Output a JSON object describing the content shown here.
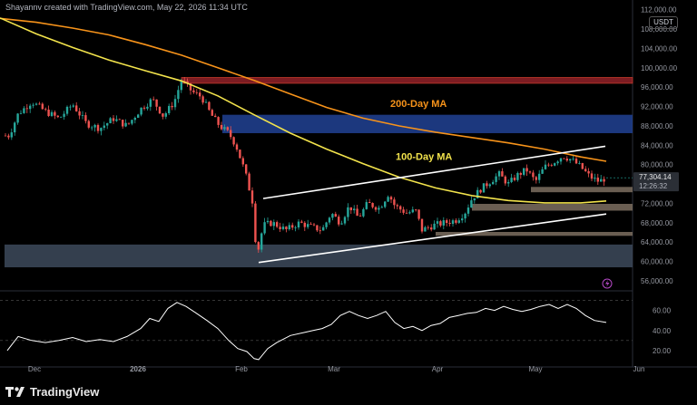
{
  "attribution": "Shayannv created with TradingView.com, May 22, 2026 11:34 UTC",
  "brand": "TradingView",
  "currency": "USDT",
  "colors": {
    "background": "#000000",
    "up": "#26a69a",
    "down": "#ef5350",
    "ma200": "#f7931a",
    "ma100": "#f2e34c",
    "demand_zone": "#3d4a5c",
    "supply_zone_blue": "#1f3e8c",
    "supply_zone_red": "#7a1c22",
    "support_box": "#8b7a6a",
    "rsi_line": "#ffffff",
    "channel": "#ffffff"
  },
  "chart_data": {
    "type": "candlestick",
    "title": "",
    "y_axis_labels": [
      "112,000.00",
      "108,000.00",
      "104,000.00",
      "100,000.00",
      "96,000.00",
      "92,000.00",
      "88,000.00",
      "84,000.00",
      "80,000.00",
      "76,000.00",
      "72,000.00",
      "68,000.00",
      "64,000.00",
      "60,000.00",
      "56,000.00"
    ],
    "ylim": [
      54500,
      114000
    ],
    "x_axis_labels": [
      "Dec",
      "2026",
      "Feb",
      "Mar",
      "Apr",
      "May",
      "Jun"
    ],
    "price_label": "77,304.14",
    "countdown_label": "12:26:32",
    "annotations": [
      {
        "text": "200-Day MA",
        "color": "#f7931a"
      },
      {
        "text": "100-Day MA",
        "color": "#f2e34c"
      }
    ],
    "ma200": [
      [
        0,
        110200
      ],
      [
        40,
        109400
      ],
      [
        80,
        108200
      ],
      [
        120,
        106800
      ],
      [
        160,
        104800
      ],
      [
        200,
        102600
      ],
      [
        240,
        100000
      ],
      [
        280,
        97400
      ],
      [
        320,
        94600
      ],
      [
        360,
        91800
      ],
      [
        400,
        89600
      ],
      [
        440,
        88000
      ],
      [
        480,
        86700
      ],
      [
        520,
        85600
      ],
      [
        560,
        84500
      ],
      [
        600,
        83200
      ],
      [
        640,
        81600
      ],
      [
        668,
        80700
      ]
    ],
    "ma100": [
      [
        0,
        110300
      ],
      [
        40,
        107000
      ],
      [
        80,
        104200
      ],
      [
        120,
        101600
      ],
      [
        160,
        99400
      ],
      [
        200,
        97300
      ],
      [
        240,
        94200
      ],
      [
        280,
        90300
      ],
      [
        320,
        86500
      ],
      [
        360,
        83200
      ],
      [
        400,
        80200
      ],
      [
        440,
        77400
      ],
      [
        480,
        75200
      ],
      [
        520,
        73600
      ],
      [
        560,
        72600
      ],
      [
        600,
        72100
      ],
      [
        640,
        72100
      ],
      [
        668,
        72500
      ]
    ],
    "channel_upper": [
      [
        290,
        73000
      ],
      [
        667,
        83800
      ]
    ],
    "channel_lower": [
      [
        285,
        59800
      ],
      [
        668,
        69800
      ]
    ],
    "zones": [
      {
        "name": "demand",
        "y1": 58800,
        "y2": 63500,
        "x1": 5,
        "x2": 697
      },
      {
        "name": "supply-blue",
        "y1": 86500,
        "y2": 90300,
        "x1": 245,
        "x2": 697
      },
      {
        "name": "supply-red",
        "y1": 96800,
        "y2": 98000,
        "x1": 200,
        "x2": 697
      },
      {
        "name": "support-1",
        "y1": 74300,
        "y2": 75400,
        "x1": 585,
        "x2": 697
      },
      {
        "name": "support-2",
        "y1": 70500,
        "y2": 71900,
        "x1": 520,
        "x2": 697
      },
      {
        "name": "support-3",
        "y1": 65300,
        "y2": 66100,
        "x1": 480,
        "x2": 697
      }
    ],
    "price_path": [
      [
        10,
        86000
      ],
      [
        20,
        90500
      ],
      [
        35,
        93000
      ],
      [
        50,
        91000
      ],
      [
        65,
        89500
      ],
      [
        80,
        92500
      ],
      [
        95,
        88500
      ],
      [
        110,
        87500
      ],
      [
        125,
        89500
      ],
      [
        140,
        88000
      ],
      [
        155,
        91500
      ],
      [
        168,
        93500
      ],
      [
        180,
        90000
      ],
      [
        192,
        93000
      ],
      [
        200,
        97500
      ],
      [
        212,
        95000
      ],
      [
        222,
        94000
      ],
      [
        232,
        90500
      ],
      [
        242,
        88000
      ],
      [
        252,
        86500
      ],
      [
        260,
        84000
      ],
      [
        270,
        78500
      ],
      [
        278,
        72500
      ],
      [
        283,
        61000
      ],
      [
        290,
        67500
      ],
      [
        300,
        68000
      ],
      [
        315,
        66500
      ],
      [
        330,
        68000
      ],
      [
        345,
        67000
      ],
      [
        355,
        66500
      ],
      [
        365,
        70000
      ],
      [
        375,
        68000
      ],
      [
        385,
        71500
      ],
      [
        395,
        69000
      ],
      [
        405,
        72000
      ],
      [
        418,
        71000
      ],
      [
        428,
        74000
      ],
      [
        435,
        71500
      ],
      [
        448,
        70000
      ],
      [
        458,
        70500
      ],
      [
        465,
        66500
      ],
      [
        478,
        67500
      ],
      [
        490,
        68000
      ],
      [
        502,
        68500
      ],
      [
        512,
        70000
      ],
      [
        520,
        73000
      ],
      [
        530,
        75000
      ],
      [
        540,
        76500
      ],
      [
        550,
        78000
      ],
      [
        560,
        76000
      ],
      [
        570,
        77800
      ],
      [
        580,
        79000
      ],
      [
        590,
        76500
      ],
      [
        600,
        79500
      ],
      [
        610,
        80500
      ],
      [
        620,
        81800
      ],
      [
        630,
        81000
      ],
      [
        640,
        79500
      ],
      [
        650,
        77500
      ],
      [
        660,
        76500
      ],
      [
        668,
        77300
      ]
    ],
    "rsi": {
      "axis_labels": [
        "60.00",
        "40.00",
        "20.00"
      ],
      "ylim": [
        10,
        75
      ],
      "levels": [
        70,
        30
      ],
      "path": [
        [
          8,
          20
        ],
        [
          20,
          34
        ],
        [
          35,
          30
        ],
        [
          50,
          28
        ],
        [
          65,
          30
        ],
        [
          80,
          33
        ],
        [
          95,
          29
        ],
        [
          110,
          31
        ],
        [
          125,
          29
        ],
        [
          140,
          34
        ],
        [
          155,
          42
        ],
        [
          165,
          52
        ],
        [
          175,
          49
        ],
        [
          185,
          62
        ],
        [
          195,
          68
        ],
        [
          205,
          64
        ],
        [
          215,
          58
        ],
        [
          228,
          50
        ],
        [
          240,
          42
        ],
        [
          252,
          30
        ],
        [
          262,
          22
        ],
        [
          272,
          19
        ],
        [
          280,
          12
        ],
        [
          285,
          11
        ],
        [
          295,
          22
        ],
        [
          305,
          28
        ],
        [
          320,
          35
        ],
        [
          335,
          38
        ],
        [
          345,
          40
        ],
        [
          355,
          42
        ],
        [
          365,
          46
        ],
        [
          375,
          55
        ],
        [
          385,
          59
        ],
        [
          395,
          55
        ],
        [
          405,
          52
        ],
        [
          415,
          55
        ],
        [
          425,
          59
        ],
        [
          435,
          48
        ],
        [
          445,
          42
        ],
        [
          455,
          44
        ],
        [
          465,
          40
        ],
        [
          475,
          45
        ],
        [
          485,
          47
        ],
        [
          495,
          53
        ],
        [
          505,
          55
        ],
        [
          515,
          57
        ],
        [
          525,
          58
        ],
        [
          535,
          62
        ],
        [
          545,
          60
        ],
        [
          555,
          64
        ],
        [
          565,
          61
        ],
        [
          575,
          59
        ],
        [
          585,
          61
        ],
        [
          595,
          64
        ],
        [
          605,
          66
        ],
        [
          615,
          62
        ],
        [
          625,
          66
        ],
        [
          635,
          62
        ],
        [
          645,
          55
        ],
        [
          655,
          50
        ],
        [
          668,
          48
        ]
      ]
    }
  }
}
